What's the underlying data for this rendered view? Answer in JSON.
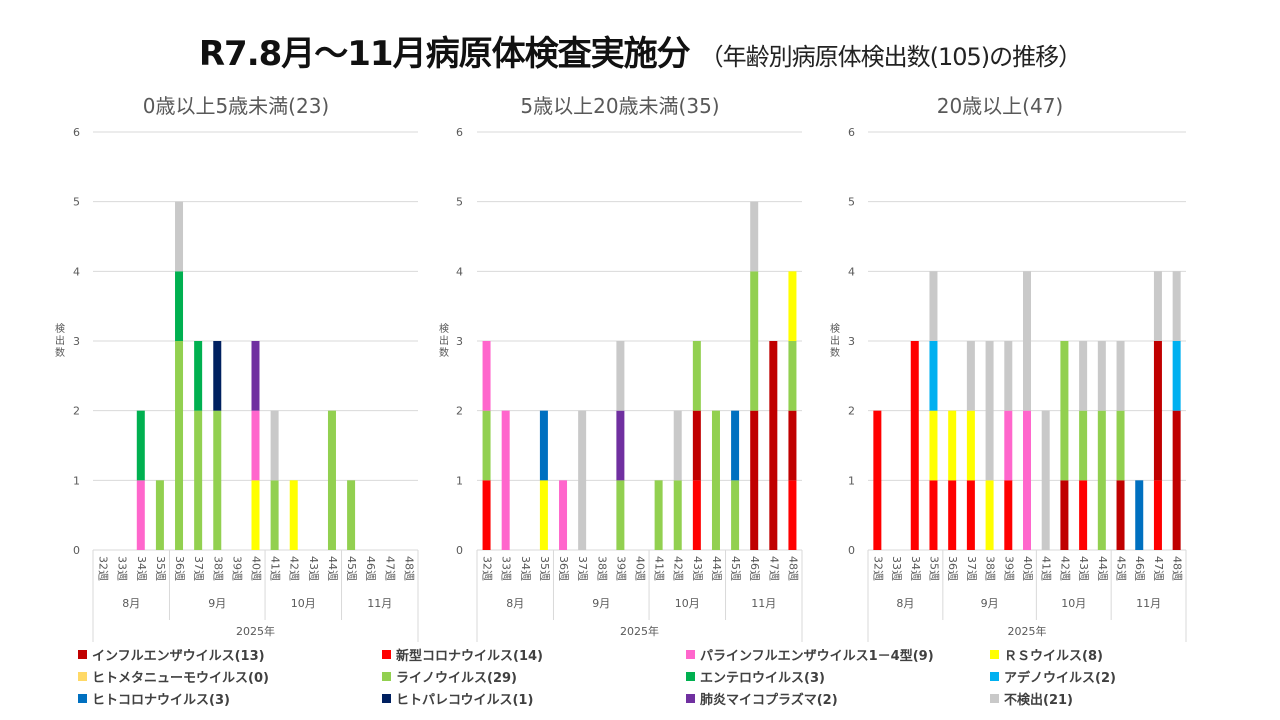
{
  "title": {
    "main": "R7.8月～11月病原体検査実施分",
    "sub": "（年齢別病原体検出数(105)の推移）"
  },
  "chart_data": [
    {
      "type": "bar",
      "stacked": true,
      "title": "0歳以上5歳未満(23)",
      "ylabel": "検出数",
      "ylim": [
        0,
        6
      ],
      "yticks": [
        "0",
        "1",
        "2",
        "3",
        "4",
        "5",
        "6"
      ],
      "xlabel": "2025年",
      "categories": [
        "32週",
        "33週",
        "34週",
        "35週",
        "36週",
        "37週",
        "38週",
        "39週",
        "40週",
        "41週",
        "42週",
        "43週",
        "44週",
        "45週",
        "46週",
        "47週",
        "48週"
      ],
      "months": [
        {
          "label": "8月",
          "weeks": 4
        },
        {
          "label": "9月",
          "weeks": 5
        },
        {
          "label": "10月",
          "weeks": 4
        },
        {
          "label": "11月",
          "weeks": 4
        }
      ],
      "series": {
        "covid": [
          0,
          0,
          0,
          0,
          0,
          0,
          0,
          0,
          0,
          0,
          0,
          0,
          0,
          0,
          0,
          0,
          0
        ],
        "flu": [
          0,
          0,
          0,
          0,
          0,
          0,
          0,
          0,
          0,
          0,
          0,
          0,
          0,
          0,
          0,
          0,
          0
        ],
        "rhino": [
          0,
          0,
          0,
          1,
          3,
          2,
          2,
          0,
          0,
          1,
          0,
          0,
          2,
          1,
          0,
          0,
          0
        ],
        "rs": [
          0,
          0,
          0,
          0,
          0,
          0,
          0,
          0,
          1,
          0,
          1,
          0,
          0,
          0,
          0,
          0,
          0
        ],
        "para": [
          0,
          0,
          1,
          0,
          0,
          0,
          0,
          0,
          1,
          0,
          0,
          0,
          0,
          0,
          0,
          0,
          0
        ],
        "entero": [
          0,
          0,
          1,
          0,
          1,
          1,
          0,
          0,
          0,
          0,
          0,
          0,
          0,
          0,
          0,
          0,
          0
        ],
        "adeno": [
          0,
          0,
          0,
          0,
          0,
          0,
          0,
          0,
          0,
          0,
          0,
          0,
          0,
          0,
          0,
          0,
          0
        ],
        "hcov": [
          0,
          0,
          0,
          0,
          0,
          0,
          0,
          0,
          0,
          0,
          0,
          0,
          0,
          0,
          0,
          0,
          0
        ],
        "parecho": [
          0,
          0,
          0,
          0,
          0,
          0,
          1,
          0,
          0,
          0,
          0,
          0,
          0,
          0,
          0,
          0,
          0
        ],
        "myco": [
          0,
          0,
          0,
          0,
          0,
          0,
          0,
          0,
          1,
          0,
          0,
          0,
          0,
          0,
          0,
          0,
          0
        ],
        "none": [
          0,
          0,
          0,
          0,
          1,
          0,
          0,
          0,
          0,
          1,
          0,
          0,
          0,
          0,
          0,
          0,
          0
        ]
      }
    },
    {
      "type": "bar",
      "stacked": true,
      "title": "5歳以上20歳未満(35)",
      "ylabel": "検出数",
      "ylim": [
        0,
        6
      ],
      "yticks": [
        "0",
        "1",
        "2",
        "3",
        "4",
        "5",
        "6"
      ],
      "xlabel": "2025年",
      "categories": [
        "32週",
        "33週",
        "34週",
        "35週",
        "36週",
        "37週",
        "38週",
        "39週",
        "40週",
        "41週",
        "42週",
        "43週",
        "44週",
        "45週",
        "46週",
        "47週",
        "48週"
      ],
      "months": [
        {
          "label": "8月",
          "weeks": 4
        },
        {
          "label": "9月",
          "weeks": 5
        },
        {
          "label": "10月",
          "weeks": 4
        },
        {
          "label": "11月",
          "weeks": 4
        }
      ],
      "series": {
        "covid": [
          1,
          0,
          0,
          0,
          0,
          0,
          0,
          0,
          0,
          0,
          0,
          1,
          0,
          0,
          0,
          0,
          1
        ],
        "flu": [
          0,
          0,
          0,
          0,
          0,
          0,
          0,
          0,
          0,
          0,
          0,
          1,
          0,
          0,
          2,
          3,
          1
        ],
        "rhino": [
          1,
          0,
          0,
          0,
          0,
          0,
          0,
          1,
          0,
          1,
          1,
          1,
          2,
          1,
          2,
          0,
          1
        ],
        "rs": [
          0,
          0,
          0,
          1,
          0,
          0,
          0,
          0,
          0,
          0,
          0,
          0,
          0,
          0,
          0,
          0,
          1
        ],
        "para": [
          1,
          2,
          0,
          0,
          1,
          0,
          0,
          0,
          0,
          0,
          0,
          0,
          0,
          0,
          0,
          0,
          0
        ],
        "entero": [
          0,
          0,
          0,
          0,
          0,
          0,
          0,
          0,
          0,
          0,
          0,
          0,
          0,
          0,
          0,
          0,
          0
        ],
        "adeno": [
          0,
          0,
          0,
          0,
          0,
          0,
          0,
          0,
          0,
          0,
          0,
          0,
          0,
          0,
          0,
          0,
          0
        ],
        "hcov": [
          0,
          0,
          0,
          1,
          0,
          0,
          0,
          0,
          0,
          0,
          0,
          0,
          0,
          1,
          0,
          0,
          0
        ],
        "parecho": [
          0,
          0,
          0,
          0,
          0,
          0,
          0,
          0,
          0,
          0,
          0,
          0,
          0,
          0,
          0,
          0,
          0
        ],
        "myco": [
          0,
          0,
          0,
          0,
          0,
          0,
          0,
          1,
          0,
          0,
          0,
          0,
          0,
          0,
          0,
          0,
          0
        ],
        "none": [
          0,
          0,
          0,
          0,
          0,
          2,
          0,
          1,
          0,
          0,
          1,
          0,
          0,
          0,
          1,
          0,
          0
        ]
      }
    },
    {
      "type": "bar",
      "stacked": true,
      "title": "20歳以上(47)",
      "ylabel": "検出数",
      "ylim": [
        0,
        6
      ],
      "yticks": [
        "0",
        "1",
        "2",
        "3",
        "4",
        "5",
        "6"
      ],
      "xlabel": "2025年",
      "categories": [
        "32週",
        "33週",
        "34週",
        "35週",
        "36週",
        "37週",
        "38週",
        "39週",
        "40週",
        "41週",
        "42週",
        "43週",
        "44週",
        "45週",
        "46週",
        "47週",
        "48週"
      ],
      "months": [
        {
          "label": "8月",
          "weeks": 4
        },
        {
          "label": "9月",
          "weeks": 5
        },
        {
          "label": "10月",
          "weeks": 4
        },
        {
          "label": "11月",
          "weeks": 4
        }
      ],
      "series": {
        "covid": [
          2,
          0,
          3,
          1,
          1,
          1,
          0,
          1,
          0,
          0,
          0,
          1,
          0,
          0,
          0,
          1,
          0
        ],
        "flu": [
          0,
          0,
          0,
          0,
          0,
          0,
          0,
          0,
          0,
          0,
          1,
          0,
          0,
          1,
          0,
          2,
          2
        ],
        "rhino": [
          0,
          0,
          0,
          0,
          0,
          0,
          0,
          0,
          0,
          0,
          2,
          1,
          2,
          1,
          0,
          0,
          0
        ],
        "rs": [
          0,
          0,
          0,
          1,
          1,
          1,
          1,
          0,
          0,
          0,
          0,
          0,
          0,
          0,
          0,
          0,
          0
        ],
        "para": [
          0,
          0,
          0,
          0,
          0,
          0,
          0,
          1,
          2,
          0,
          0,
          0,
          0,
          0,
          0,
          0,
          0
        ],
        "entero": [
          0,
          0,
          0,
          0,
          0,
          0,
          0,
          0,
          0,
          0,
          0,
          0,
          0,
          0,
          0,
          0,
          0
        ],
        "adeno": [
          0,
          0,
          0,
          1,
          0,
          0,
          0,
          0,
          0,
          0,
          0,
          0,
          0,
          0,
          0,
          0,
          1
        ],
        "hcov": [
          0,
          0,
          0,
          0,
          0,
          0,
          0,
          0,
          0,
          0,
          0,
          0,
          0,
          0,
          1,
          0,
          0
        ],
        "parecho": [
          0,
          0,
          0,
          0,
          0,
          0,
          0,
          0,
          0,
          0,
          0,
          0,
          0,
          0,
          0,
          0,
          0
        ],
        "myco": [
          0,
          0,
          0,
          0,
          0,
          0,
          0,
          0,
          0,
          0,
          0,
          0,
          0,
          0,
          0,
          0,
          0
        ],
        "none": [
          0,
          0,
          0,
          1,
          0,
          1,
          2,
          1,
          2,
          2,
          0,
          1,
          1,
          1,
          0,
          1,
          1
        ]
      }
    }
  ],
  "legend": [
    {
      "key": "flu",
      "label": "インフルエンザウイルス(13)",
      "color": "#C00000"
    },
    {
      "key": "covid",
      "label": "新型コロナウイルス(14)",
      "color": "#FF0000"
    },
    {
      "key": "para",
      "label": "パラインフルエンザウイルス1－4型(9)",
      "color": "#FF66CC"
    },
    {
      "key": "rs",
      "label": "ＲＳウイルス(8)",
      "color": "#FFFF00"
    },
    {
      "key": "hmpv",
      "label": "ヒトメタニューモウイルス(0)",
      "color": "#FFD966"
    },
    {
      "key": "rhino",
      "label": "ライノウイルス(29)",
      "color": "#92D050"
    },
    {
      "key": "entero",
      "label": "エンテロウイルス(3)",
      "color": "#00B050"
    },
    {
      "key": "adeno",
      "label": "アデノウイルス(2)",
      "color": "#00B0F0"
    },
    {
      "key": "hcov",
      "label": "ヒトコロナウイルス(3)",
      "color": "#0070C0"
    },
    {
      "key": "parecho",
      "label": "ヒトパレコウイルス(1)",
      "color": "#002060"
    },
    {
      "key": "myco",
      "label": "肺炎マイコプラズマ(2)",
      "color": "#7030A0"
    },
    {
      "key": "none",
      "label": "不検出(21)",
      "color": "#C9C9C9"
    }
  ],
  "stack_order": [
    "covid",
    "flu",
    "rhino",
    "rs",
    "para",
    "entero",
    "adeno",
    "hcov",
    "parecho",
    "myco",
    "none"
  ]
}
